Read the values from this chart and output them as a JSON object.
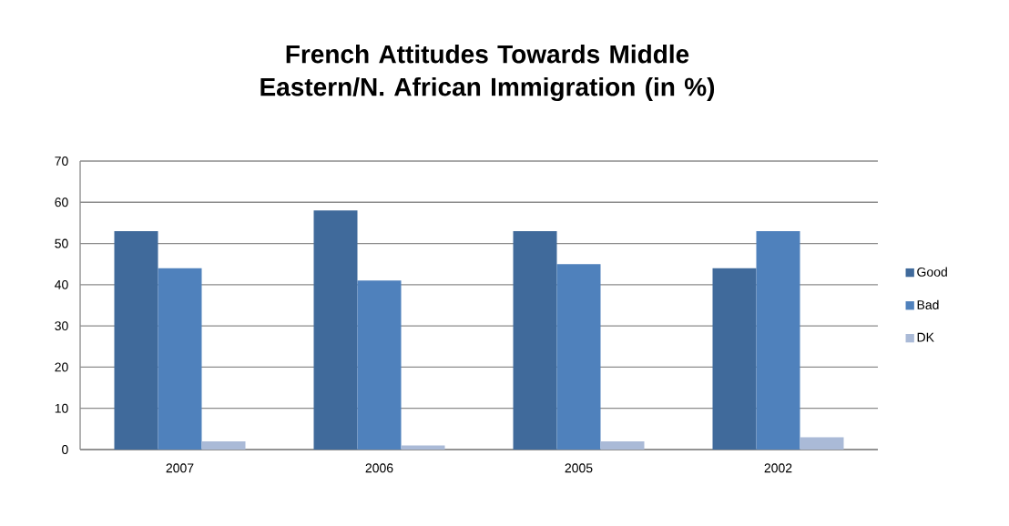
{
  "chart_data": {
    "type": "bar",
    "title": "French Attitudes Towards Middle Eastern/N. African Immigration (in %)",
    "categories": [
      "2007",
      "2006",
      "2005",
      "2002"
    ],
    "series": [
      {
        "name": "Good",
        "color": "#406a9b",
        "values": [
          53,
          58,
          53,
          44
        ]
      },
      {
        "name": "Bad",
        "color": "#4f81bc",
        "values": [
          44,
          41,
          45,
          53
        ]
      },
      {
        "name": "DK",
        "color": "#aabad7",
        "values": [
          2,
          1,
          2,
          3
        ]
      }
    ],
    "ylim": [
      0,
      70
    ],
    "yticks": [
      0,
      10,
      20,
      30,
      40,
      50,
      60,
      70
    ],
    "grid": "y",
    "legend": "right"
  }
}
